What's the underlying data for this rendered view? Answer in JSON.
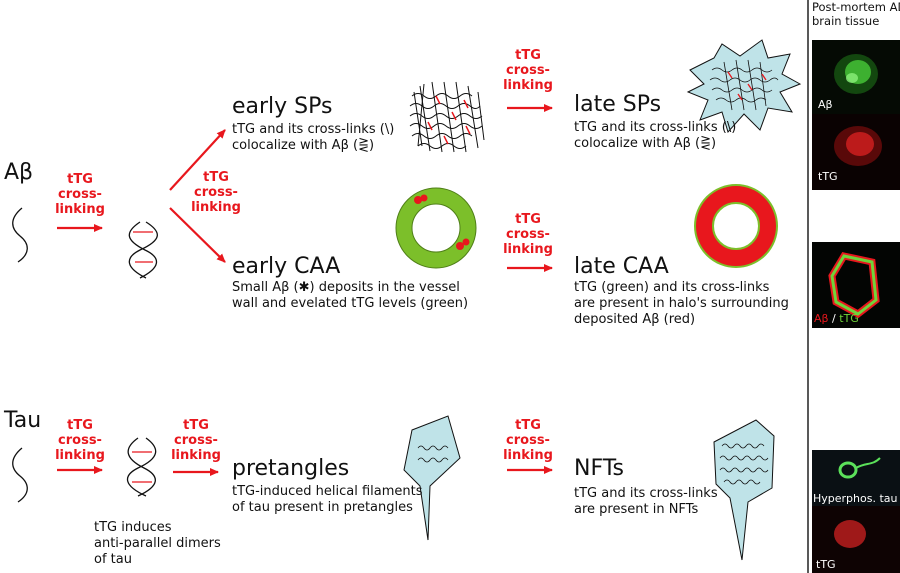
{
  "header": {
    "panel_title_line1": "Post-mortem AD",
    "panel_title_line2": "brain tissue"
  },
  "rows": {
    "abeta_label": "Aβ",
    "tau_label": "Tau"
  },
  "crosslink": {
    "line1": "tTG",
    "line2": "cross-",
    "line3": "linking"
  },
  "early_sps": {
    "title": "early SPs",
    "line1": "tTG and its cross-links (\\)",
    "line2": "colocalize with Aβ (⋛)"
  },
  "late_sps": {
    "title": "late SPs",
    "line1": "tTG and its cross-links (\\)",
    "line2": "colocalize with Aβ (⋛)"
  },
  "early_caa": {
    "title": "early  CAA",
    "line1": "Small Aβ (✱) deposits in the vessel",
    "line2": "wall and evelated tTG levels (green)"
  },
  "late_caa": {
    "title": "late CAA",
    "line1": "tTG (green) and its cross-links",
    "line2": "are present in halo's surrounding",
    "line3": "deposited Aβ (red)"
  },
  "tau_dimer": {
    "line1": "tTG induces",
    "line2": "anti-parallel dimers",
    "line3": "of tau"
  },
  "pretangles": {
    "title": "pretangles",
    "line1": "tTG-induced helical filaments",
    "line2": "of tau present in pretangles"
  },
  "nfts": {
    "title": "NFTs",
    "line1": "tTG and its cross-links",
    "line2": "are present in NFTs"
  },
  "panels": {
    "p1_label": "Aβ",
    "p2_label": "tTG",
    "p3_label_red": "Aβ",
    "p3_sep": " / ",
    "p3_label_green": "tTG",
    "p4_label": "Hyperphos. tau",
    "p5_label": "tTG"
  },
  "colors": {
    "accent_red": "#e8171d",
    "vessel_green": "#7cbf2a",
    "cyan_fill": "#bfe3e8",
    "panel_black": "#050505"
  }
}
